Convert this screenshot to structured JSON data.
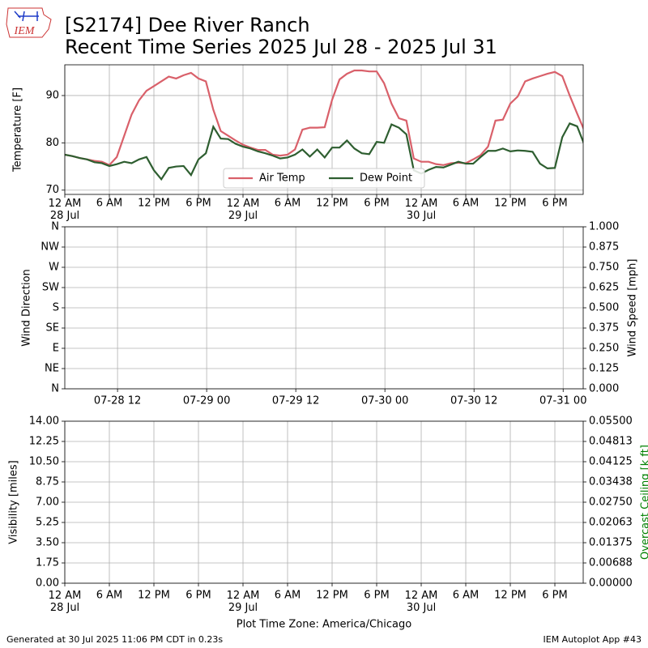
{
  "header": {
    "logo_text": "IEM",
    "title": "[S2174] Dee River Ranch",
    "subtitle": "Recent Time Series 2025 Jul 28 - 2025 Jul 31"
  },
  "footer": {
    "left": "Generated at 30 Jul 2025 11:06 PM CDT in 0.23s",
    "right": "IEM Autoplot App #43"
  },
  "chart_data": [
    {
      "type": "line",
      "ylabel": "Temperature [F]",
      "grid": true,
      "legend": "lower center",
      "xlim": [
        "28 Jul 00:00",
        "30 Jul 21:49"
      ],
      "ylim": [
        69.1,
        96.5
      ],
      "yticks": [
        70,
        80,
        90
      ],
      "xticks": [
        {
          "value": "28 Jul 00:00",
          "label": "12 AM\n28 Jul"
        },
        {
          "value": "28 Jul 06:00",
          "label": "6 AM"
        },
        {
          "value": "28 Jul 12:00",
          "label": "12 PM"
        },
        {
          "value": "28 Jul 18:00",
          "label": "6 PM"
        },
        {
          "value": "29 Jul 00:00",
          "label": "12 AM\n29 Jul"
        },
        {
          "value": "29 Jul 06:00",
          "label": "6 AM"
        },
        {
          "value": "29 Jul 12:00",
          "label": "12 PM"
        },
        {
          "value": "29 Jul 18:00",
          "label": "6 PM"
        },
        {
          "value": "30 Jul 00:00",
          "label": "12 AM\n30 Jul"
        },
        {
          "value": "30 Jul 06:00",
          "label": "6 AM"
        },
        {
          "value": "30 Jul 12:00",
          "label": "12 PM"
        },
        {
          "value": "30 Jul 18:00",
          "label": "6 PM"
        }
      ],
      "x": [
        "28 Jul 00:00",
        "28 Jul 01:00",
        "28 Jul 02:00",
        "28 Jul 03:00",
        "28 Jul 04:00",
        "28 Jul 05:00",
        "28 Jul 06:00",
        "28 Jul 07:00",
        "28 Jul 08:00",
        "28 Jul 09:00",
        "28 Jul 10:00",
        "28 Jul 11:00",
        "28 Jul 12:00",
        "28 Jul 13:00",
        "28 Jul 14:00",
        "28 Jul 15:00",
        "28 Jul 16:00",
        "28 Jul 17:00",
        "28 Jul 18:00",
        "28 Jul 19:00",
        "28 Jul 20:00",
        "28 Jul 21:00",
        "28 Jul 22:00",
        "28 Jul 23:00",
        "29 Jul 00:00",
        "29 Jul 01:00",
        "29 Jul 02:00",
        "29 Jul 03:00",
        "29 Jul 04:00",
        "29 Jul 05:00",
        "29 Jul 06:00",
        "29 Jul 07:00",
        "29 Jul 08:00",
        "29 Jul 09:00",
        "29 Jul 10:00",
        "29 Jul 11:00",
        "29 Jul 12:00",
        "29 Jul 13:00",
        "29 Jul 14:00",
        "29 Jul 15:00",
        "29 Jul 16:00",
        "29 Jul 17:00",
        "29 Jul 18:00",
        "29 Jul 19:00",
        "29 Jul 20:00",
        "29 Jul 21:00",
        "29 Jul 22:00",
        "29 Jul 23:00",
        "30 Jul 00:00",
        "30 Jul 01:00",
        "30 Jul 02:00",
        "30 Jul 03:00",
        "30 Jul 04:00",
        "30 Jul 05:00",
        "30 Jul 06:00",
        "30 Jul 07:00",
        "30 Jul 08:00",
        "30 Jul 09:00",
        "30 Jul 10:00",
        "30 Jul 11:00",
        "30 Jul 12:00",
        "30 Jul 13:00",
        "30 Jul 14:00",
        "30 Jul 15:00",
        "30 Jul 16:00",
        "30 Jul 17:00",
        "30 Jul 18:00",
        "30 Jul 19:00",
        "30 Jul 20:00",
        "30 Jul 21:00",
        "30 Jul 22:00"
      ],
      "series": [
        {
          "name": "Air Temp",
          "color": "#d9606a",
          "values": [
            77.5,
            77.2,
            76.8,
            76.5,
            76.2,
            76,
            75.3,
            77,
            81.5,
            86,
            89,
            91,
            92,
            93,
            94,
            93.6,
            94.3,
            94.8,
            93.6,
            93,
            87,
            82.5,
            81.5,
            80.5,
            79.6,
            79,
            78.5,
            78.5,
            77.5,
            77.3,
            77.5,
            78.6,
            82.8,
            83.2,
            83.2,
            83.3,
            89.1,
            93.4,
            94.6,
            95.3,
            95.3,
            95.1,
            95.1,
            92.6,
            88.3,
            85.2,
            84.7,
            76.7,
            76,
            76,
            75.5,
            75.3,
            75.7,
            75.8,
            75.7,
            76.5,
            77.4,
            79.2,
            84.7,
            84.9,
            88.3,
            89.8,
            93,
            93.6,
            94.1,
            94.6,
            95,
            94.1,
            90,
            86.2,
            82.5
          ]
        },
        {
          "name": "Dew Point",
          "color": "#2e5e30",
          "values": [
            77.5,
            77.2,
            76.8,
            76.5,
            75.9,
            75.7,
            75.1,
            75.5,
            76,
            75.7,
            76.5,
            77,
            74.2,
            72.3,
            74.7,
            75,
            75.1,
            73.2,
            76.5,
            77.8,
            83.4,
            80.9,
            80.8,
            79.8,
            79.2,
            78.8,
            78.2,
            77.8,
            77.3,
            76.7,
            76.9,
            77.5,
            78.6,
            77.1,
            78.6,
            76.9,
            79,
            79,
            80.5,
            78.8,
            77.8,
            77.6,
            80.2,
            80,
            83.9,
            83.2,
            81.8,
            74.2,
            73.5,
            74.3,
            74.9,
            74.8,
            75.4,
            76,
            75.6,
            75.6,
            77,
            78.3,
            78.3,
            78.8,
            78.2,
            78.4,
            78.3,
            78.1,
            75.6,
            74.6,
            74.7,
            81.2,
            84.1,
            83.5,
            79.5
          ]
        }
      ]
    },
    {
      "type": "line",
      "ylabel": "Wind Direction",
      "y2label": "Wind Speed [mph]",
      "grid": true,
      "xlim": [
        "28 Jul 04:54",
        "31 Jul 02:42"
      ],
      "ylim": [
        0,
        360
      ],
      "yticks": [
        {
          "value": 0,
          "label": "N"
        },
        {
          "value": 45,
          "label": "NE"
        },
        {
          "value": 90,
          "label": "E"
        },
        {
          "value": 135,
          "label": "SE"
        },
        {
          "value": 180,
          "label": "S"
        },
        {
          "value": 225,
          "label": "SW"
        },
        {
          "value": 270,
          "label": "W"
        },
        {
          "value": 315,
          "label": "NW"
        },
        {
          "value": 360,
          "label": "N"
        }
      ],
      "y2lim": [
        0,
        1
      ],
      "y2ticks": [
        {
          "value": 0,
          "label": "0.000"
        },
        {
          "value": 0.125,
          "label": "0.125"
        },
        {
          "value": 0.25,
          "label": "0.250"
        },
        {
          "value": 0.375,
          "label": "0.375"
        },
        {
          "value": 0.5,
          "label": "0.500"
        },
        {
          "value": 0.625,
          "label": "0.625"
        },
        {
          "value": 0.75,
          "label": "0.750"
        },
        {
          "value": 0.875,
          "label": "0.875"
        },
        {
          "value": 1,
          "label": "1.000"
        }
      ],
      "xticks": [
        {
          "value": "28 Jul 12:00",
          "label": "07-28 12"
        },
        {
          "value": "29 Jul 00:00",
          "label": "07-29 00"
        },
        {
          "value": "29 Jul 12:00",
          "label": "07-29 12"
        },
        {
          "value": "30 Jul 00:00",
          "label": "07-30 00"
        },
        {
          "value": "30 Jul 12:00",
          "label": "07-30 12"
        },
        {
          "value": "31 Jul 00:00",
          "label": "07-31 00"
        }
      ]
    },
    {
      "type": "line",
      "ylabel": "Visibility [miles]",
      "y2label": "Overcast Ceiling [k ft]",
      "y2label_color": "#008000",
      "xlabel": "Plot Time Zone: America/Chicago",
      "grid": true,
      "xlim": [
        "28 Jul 00:00",
        "30 Jul 21:49"
      ],
      "ylim": [
        0,
        14
      ],
      "yticks": [
        {
          "value": 0,
          "label": "0.00"
        },
        {
          "value": 1.75,
          "label": "1.75"
        },
        {
          "value": 3.5,
          "label": "3.50"
        },
        {
          "value": 5.25,
          "label": "5.25"
        },
        {
          "value": 7,
          "label": "7.00"
        },
        {
          "value": 8.75,
          "label": "8.75"
        },
        {
          "value": 10.5,
          "label": "10.50"
        },
        {
          "value": 12.25,
          "label": "12.25"
        },
        {
          "value": 14,
          "label": "14.00"
        }
      ],
      "y2lim": [
        0,
        0.055
      ],
      "y2ticks": [
        {
          "value": 0,
          "label": "0.00000"
        },
        {
          "value": 0.006875,
          "label": "0.00688"
        },
        {
          "value": 0.01375,
          "label": "0.01375"
        },
        {
          "value": 0.020625,
          "label": "0.02063"
        },
        {
          "value": 0.0275,
          "label": "0.02750"
        },
        {
          "value": 0.034375,
          "label": "0.03438"
        },
        {
          "value": 0.04125,
          "label": "0.04125"
        },
        {
          "value": 0.048125,
          "label": "0.04813"
        },
        {
          "value": 0.055,
          "label": "0.05500"
        }
      ],
      "xticks": [
        {
          "value": "28 Jul 00:00",
          "label": "12 AM\n28 Jul"
        },
        {
          "value": "28 Jul 06:00",
          "label": "6 AM"
        },
        {
          "value": "28 Jul 12:00",
          "label": "12 PM"
        },
        {
          "value": "28 Jul 18:00",
          "label": "6 PM"
        },
        {
          "value": "29 Jul 00:00",
          "label": "12 AM\n29 Jul"
        },
        {
          "value": "29 Jul 06:00",
          "label": "6 AM"
        },
        {
          "value": "29 Jul 12:00",
          "label": "12 PM"
        },
        {
          "value": "29 Jul 18:00",
          "label": "6 PM"
        },
        {
          "value": "30 Jul 00:00",
          "label": "12 AM\n30 Jul"
        },
        {
          "value": "30 Jul 06:00",
          "label": "6 AM"
        },
        {
          "value": "30 Jul 12:00",
          "label": "12 PM"
        },
        {
          "value": "30 Jul 18:00",
          "label": "6 PM"
        }
      ]
    }
  ]
}
